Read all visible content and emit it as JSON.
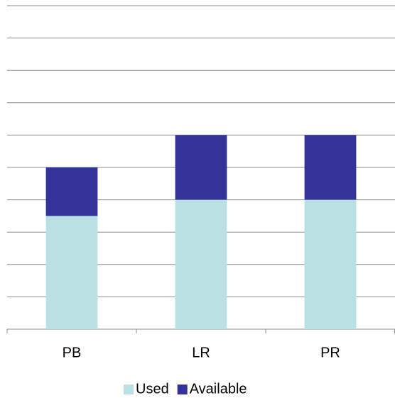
{
  "chart_data": {
    "type": "stacked_bar",
    "categories": [
      "PB",
      "LR",
      "PR"
    ],
    "series": [
      {
        "name": "Used",
        "color": "#b9e1e4",
        "values": [
          3.5,
          4,
          4
        ]
      },
      {
        "name": "Available",
        "color": "#333399",
        "values": [
          1.5,
          2,
          2
        ]
      }
    ],
    "ylim": [
      0,
      10
    ],
    "yticks": [
      0,
      1,
      2,
      3,
      4,
      5,
      6,
      7,
      8,
      9,
      10
    ],
    "grid": true,
    "legend": "bottom"
  }
}
